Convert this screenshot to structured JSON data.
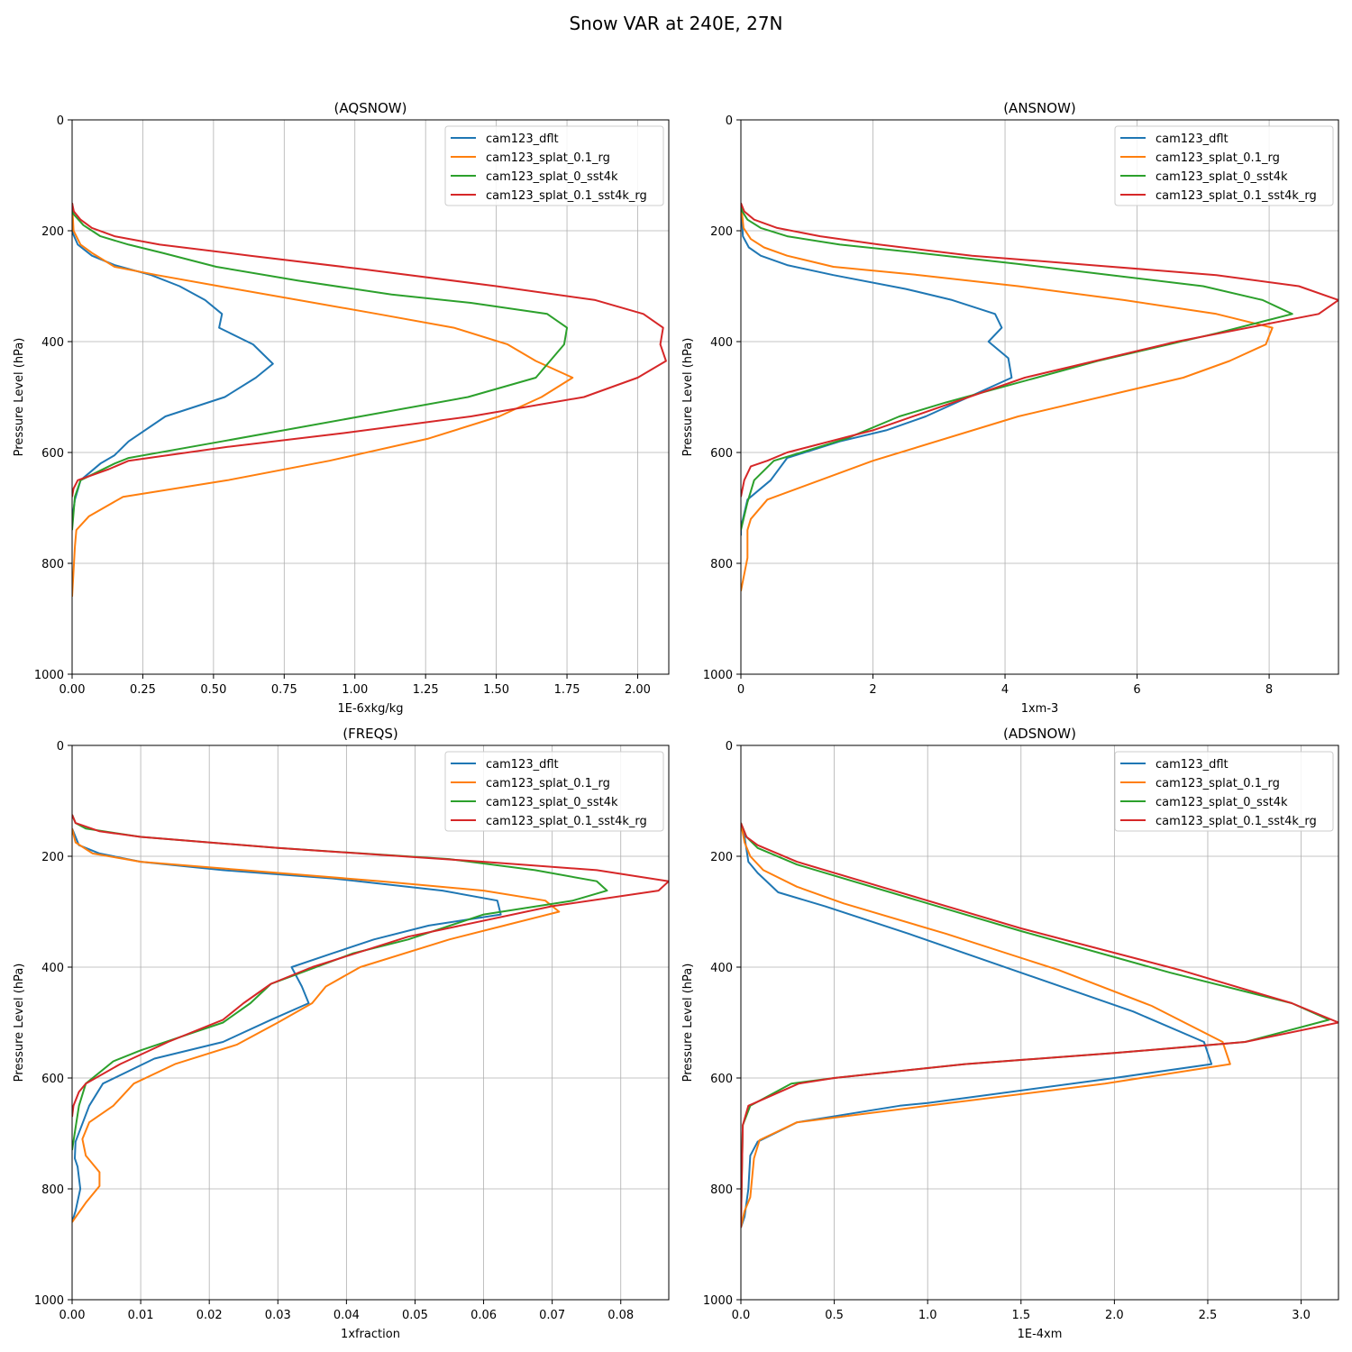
{
  "title": "Snow VAR at 240E, 27N",
  "colors": {
    "cam123_dflt": "#1f77b4",
    "cam123_splat_0.1_rg": "#ff7f0e",
    "cam123_splat_0_sst4k": "#2ca02c",
    "cam123_splat_0.1_sst4k_rg": "#d62728"
  },
  "chart_data": [
    {
      "type": "line",
      "title": "(AQSNOW)",
      "xlabel": "1E-6xkg/kg",
      "ylabel": "Pressure Level (hPa)",
      "xlim": [
        0,
        2.11
      ],
      "ylim": [
        1000,
        0
      ],
      "y_inverted": true,
      "xticks": [
        0,
        0.25,
        0.5,
        0.75,
        1.0,
        1.25,
        1.5,
        1.75,
        2.0
      ],
      "xtick_labels": [
        "0.00",
        "0.25",
        "0.50",
        "0.75",
        "1.00",
        "1.25",
        "1.50",
        "1.75",
        "2.00"
      ],
      "yticks": [
        0,
        200,
        400,
        600,
        800,
        1000
      ],
      "grid": true,
      "legend": "top-right",
      "series": [
        {
          "name": "cam123_dflt",
          "x": [
            0,
            0.003,
            0.02,
            0.07,
            0.15,
            0.28,
            0.38,
            0.47,
            0.53,
            0.52,
            0.64,
            0.71,
            0.65,
            0.54,
            0.33,
            0.2,
            0.15,
            0.1,
            0.03,
            0.01,
            0.0,
            0.0
          ],
          "y": [
            150,
            205,
            225,
            245,
            262,
            280,
            300,
            325,
            350,
            375,
            405,
            440,
            465,
            500,
            535,
            580,
            605,
            620,
            650,
            685,
            720,
            740
          ]
        },
        {
          "name": "cam123_splat_0.1_rg",
          "x": [
            0,
            0.005,
            0.03,
            0.07,
            0.15,
            0.3,
            0.52,
            0.8,
            1.08,
            1.35,
            1.54,
            1.64,
            1.77,
            1.66,
            1.51,
            1.26,
            0.91,
            0.55,
            0.18,
            0.06,
            0.015,
            0.01,
            0.0
          ],
          "y": [
            150,
            200,
            225,
            240,
            265,
            280,
            300,
            325,
            350,
            375,
            405,
            435,
            465,
            500,
            535,
            575,
            615,
            650,
            680,
            715,
            740,
            770,
            860
          ]
        },
        {
          "name": "cam123_splat_0_sst4k",
          "x": [
            0,
            0.005,
            0.04,
            0.1,
            0.2,
            0.32,
            0.51,
            0.8,
            1.13,
            1.41,
            1.68,
            1.75,
            1.74,
            1.64,
            1.4,
            1.02,
            0.53,
            0.2,
            0.15,
            0.03,
            0.01,
            0.0
          ],
          "y": [
            150,
            170,
            190,
            210,
            225,
            240,
            265,
            290,
            315,
            330,
            350,
            375,
            405,
            465,
            500,
            535,
            580,
            610,
            620,
            650,
            680,
            740
          ]
        },
        {
          "name": "cam123_splat_0.1_sst4k_rg",
          "x": [
            0,
            0.006,
            0.03,
            0.07,
            0.15,
            0.31,
            0.63,
            1.04,
            1.5,
            1.85,
            2.02,
            2.09,
            2.08,
            2.1,
            2.0,
            1.81,
            1.41,
            0.96,
            0.55,
            0.2,
            0.13,
            0.02,
            0.005,
            0.0
          ],
          "y": [
            150,
            165,
            180,
            195,
            210,
            225,
            245,
            270,
            300,
            325,
            350,
            375,
            405,
            435,
            465,
            500,
            535,
            565,
            590,
            615,
            630,
            650,
            665,
            680
          ]
        }
      ]
    },
    {
      "type": "line",
      "title": "(ANSNOW)",
      "xlabel": "1xm-3",
      "ylabel": "Pressure Level (hPa)",
      "xlim": [
        0,
        9.05
      ],
      "ylim": [
        1000,
        0
      ],
      "y_inverted": true,
      "xticks": [
        0,
        2,
        4,
        6,
        8
      ],
      "xtick_labels": [
        "0",
        "2",
        "4",
        "6",
        "8"
      ],
      "yticks": [
        0,
        200,
        400,
        600,
        800,
        1000
      ],
      "grid": true,
      "legend": "top-right",
      "series": [
        {
          "name": "cam123_dflt",
          "x": [
            0,
            0.03,
            0.12,
            0.3,
            0.7,
            1.4,
            2.5,
            3.2,
            3.85,
            3.95,
            3.75,
            4.05,
            4.1,
            2.8,
            2.2,
            1.5,
            0.7,
            0.45,
            0.1,
            0.05,
            0.0,
            0.0
          ],
          "y": [
            150,
            210,
            230,
            245,
            262,
            280,
            305,
            325,
            350,
            375,
            400,
            430,
            465,
            535,
            560,
            580,
            610,
            650,
            685,
            710,
            735,
            750
          ]
        },
        {
          "name": "cam123_splat_0.1_rg",
          "x": [
            0,
            0.04,
            0.15,
            0.35,
            0.7,
            1.4,
            2.7,
            4.2,
            5.8,
            7.2,
            8.05,
            7.95,
            7.4,
            6.7,
            4.2,
            2.0,
            0.4,
            0.15,
            0.1,
            0.1,
            0.0
          ],
          "y": [
            150,
            195,
            215,
            230,
            245,
            265,
            280,
            300,
            325,
            350,
            375,
            405,
            435,
            465,
            535,
            615,
            685,
            720,
            740,
            790,
            850
          ]
        },
        {
          "name": "cam123_splat_0_sst4k",
          "x": [
            0,
            0.02,
            0.1,
            0.3,
            0.7,
            1.5,
            2.7,
            4.2,
            5.6,
            7.0,
            7.9,
            8.35,
            7.2,
            5.4,
            3.1,
            2.4,
            1.6,
            0.5,
            0.2,
            0.1,
            0.0
          ],
          "y": [
            150,
            165,
            180,
            195,
            210,
            225,
            240,
            260,
            280,
            300,
            325,
            350,
            385,
            435,
            510,
            535,
            575,
            615,
            650,
            690,
            740
          ]
        },
        {
          "name": "cam123_splat_0.1_sst4k_rg",
          "x": [
            0,
            0.05,
            0.2,
            0.55,
            1.2,
            2.1,
            3.5,
            5.3,
            7.2,
            8.45,
            9.05,
            8.75,
            6.6,
            4.3,
            2.0,
            0.7,
            0.4,
            0.15,
            0.05,
            0.0
          ],
          "y": [
            150,
            165,
            180,
            195,
            210,
            225,
            245,
            262,
            280,
            300,
            325,
            350,
            400,
            465,
            560,
            600,
            615,
            625,
            650,
            680
          ]
        }
      ]
    },
    {
      "type": "line",
      "title": "(FREQS)",
      "xlabel": "1xfraction",
      "ylabel": "Pressure Level (hPa)",
      "xlim": [
        0,
        0.087
      ],
      "ylim": [
        1000,
        0
      ],
      "y_inverted": true,
      "xticks": [
        0,
        0.01,
        0.02,
        0.03,
        0.04,
        0.05,
        0.06,
        0.07,
        0.08
      ],
      "xtick_labels": [
        "0.00",
        "0.01",
        "0.02",
        "0.03",
        "0.04",
        "0.05",
        "0.06",
        "0.07",
        "0.08"
      ],
      "yticks": [
        0,
        200,
        400,
        600,
        800,
        1000
      ],
      "grid": true,
      "legend": "top-right",
      "series": [
        {
          "name": "cam123_dflt",
          "x": [
            0,
            0.001,
            0.004,
            0.01,
            0.022,
            0.038,
            0.054,
            0.062,
            0.0625,
            0.052,
            0.044,
            0.038,
            0.032,
            0.0335,
            0.0345,
            0.029,
            0.022,
            0.012,
            0.0045,
            0.0025,
            0.0005,
            0.0004,
            0.0008,
            0.0012,
            0.0005,
            0.0
          ],
          "y": [
            150,
            180,
            195,
            210,
            225,
            240,
            262,
            280,
            305,
            325,
            350,
            375,
            400,
            435,
            465,
            495,
            535,
            565,
            610,
            650,
            715,
            745,
            760,
            800,
            840,
            860
          ]
        },
        {
          "name": "cam123_splat_0.1_rg",
          "x": [
            0,
            0.0005,
            0.003,
            0.01,
            0.025,
            0.045,
            0.06,
            0.069,
            0.071,
            0.063,
            0.055,
            0.042,
            0.037,
            0.035,
            0.03,
            0.024,
            0.015,
            0.009,
            0.006,
            0.0025,
            0.0015,
            0.002,
            0.004,
            0.004,
            0.002,
            0.0
          ],
          "y": [
            150,
            175,
            195,
            210,
            225,
            245,
            262,
            280,
            300,
            325,
            350,
            400,
            435,
            465,
            500,
            540,
            575,
            610,
            650,
            680,
            710,
            740,
            770,
            795,
            825,
            860
          ]
        },
        {
          "name": "cam123_splat_0_sst4k",
          "x": [
            0,
            0.0005,
            0.002,
            0.01,
            0.03,
            0.055,
            0.0675,
            0.0765,
            0.078,
            0.073,
            0.06,
            0.049,
            0.041,
            0.029,
            0.026,
            0.022,
            0.01,
            0.006,
            0.002,
            0.001,
            0.0005,
            0.0
          ],
          "y": [
            125,
            140,
            150,
            165,
            185,
            205,
            225,
            245,
            262,
            280,
            305,
            350,
            375,
            430,
            465,
            500,
            550,
            570,
            610,
            650,
            690,
            730
          ]
        },
        {
          "name": "cam123_splat_0.1_sst4k_rg",
          "x": [
            0,
            0.0005,
            0.004,
            0.01,
            0.03,
            0.06,
            0.0765,
            0.087,
            0.0855,
            0.07,
            0.049,
            0.035,
            0.029,
            0.025,
            0.022,
            0.014,
            0.007,
            0.002,
            0.001,
            0.0002,
            0.0
          ],
          "y": [
            125,
            140,
            155,
            165,
            185,
            210,
            225,
            245,
            262,
            290,
            345,
            400,
            430,
            465,
            495,
            535,
            575,
            610,
            625,
            650,
            670
          ]
        }
      ]
    },
    {
      "type": "line",
      "title": "(ADSNOW)",
      "xlabel": "1E-4xm",
      "ylabel": "Pressure Level (hPa)",
      "xlim": [
        0,
        3.2
      ],
      "ylim": [
        1000,
        0
      ],
      "y_inverted": true,
      "xticks": [
        0,
        0.5,
        1.0,
        1.5,
        2.0,
        2.5,
        3.0
      ],
      "xtick_labels": [
        "0.0",
        "0.5",
        "1.0",
        "1.5",
        "2.0",
        "2.5",
        "3.0"
      ],
      "yticks": [
        0,
        200,
        400,
        600,
        800,
        1000
      ],
      "grid": true,
      "legend": "top-right",
      "series": [
        {
          "name": "cam123_dflt",
          "x": [
            0,
            0.02,
            0.04,
            0.09,
            0.2,
            0.45,
            0.9,
            1.5,
            2.1,
            2.48,
            2.52,
            2.0,
            1.0,
            0.85,
            0.3,
            0.09,
            0.05,
            0.04,
            0.02,
            0.0
          ],
          "y": [
            140,
            165,
            210,
            230,
            265,
            290,
            340,
            410,
            480,
            535,
            575,
            600,
            645,
            650,
            680,
            715,
            740,
            800,
            850,
            870
          ]
        },
        {
          "name": "cam123_splat_0.1_rg",
          "x": [
            0,
            0.02,
            0.05,
            0.12,
            0.3,
            0.55,
            1.1,
            1.7,
            2.2,
            2.58,
            2.62,
            1.95,
            1.0,
            0.3,
            0.1,
            0.07,
            0.05,
            0.02,
            0.0
          ],
          "y": [
            140,
            175,
            200,
            225,
            255,
            285,
            340,
            405,
            470,
            535,
            575,
            610,
            650,
            680,
            712,
            745,
            815,
            840,
            870
          ]
        },
        {
          "name": "cam123_splat_0_sst4k",
          "x": [
            0,
            0.03,
            0.09,
            0.3,
            0.8,
            1.5,
            2.3,
            2.95,
            3.15,
            2.7,
            2.0,
            1.2,
            0.5,
            0.27,
            0.05,
            0.01,
            0.0
          ],
          "y": [
            140,
            165,
            185,
            215,
            265,
            335,
            410,
            465,
            495,
            535,
            555,
            575,
            600,
            610,
            650,
            685,
            870
          ]
        },
        {
          "name": "cam123_splat_0.1_sst4k_rg",
          "x": [
            0,
            0.03,
            0.09,
            0.3,
            0.8,
            1.5,
            2.35,
            2.95,
            3.2,
            2.7,
            2.0,
            1.2,
            0.5,
            0.31,
            0.04,
            0.01,
            0.0
          ],
          "y": [
            140,
            165,
            180,
            210,
            260,
            330,
            405,
            465,
            500,
            535,
            555,
            575,
            600,
            610,
            650,
            685,
            870
          ]
        }
      ]
    }
  ]
}
